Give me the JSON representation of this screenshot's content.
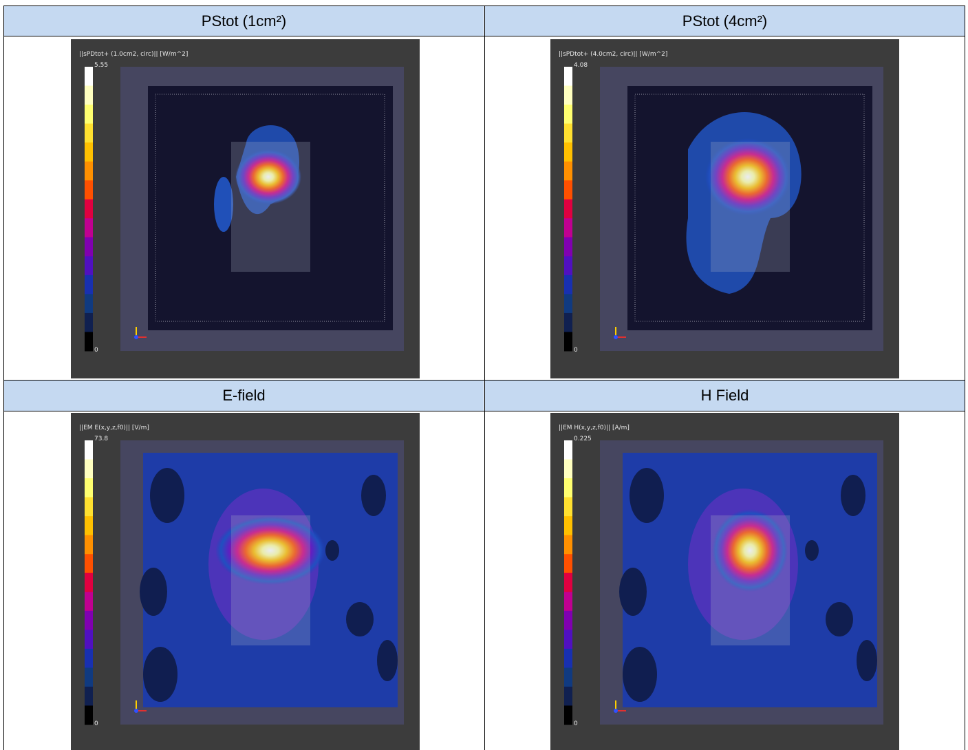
{
  "table": {
    "headers": [
      [
        "PStot (1cm²)",
        "PStot (4cm²)"
      ],
      [
        "E-field",
        "H Field"
      ]
    ],
    "panels": [
      {
        "title": "||sPDtot+ (1.0cm2, circ)|| [W/m^2]",
        "max": 5.55,
        "min": 0
      },
      {
        "title": "||sPDtot+ (4.0cm2, circ)|| [W/m^2]",
        "max": 4.08,
        "min": 0
      },
      {
        "title": "||EM E(x,y,z,f0)|| [V/m]",
        "max": 73.8,
        "min": 0
      },
      {
        "title": "||EM H(x,y,z,f0)|| [A/m]",
        "max": 0.225,
        "min": 0
      }
    ]
  }
}
